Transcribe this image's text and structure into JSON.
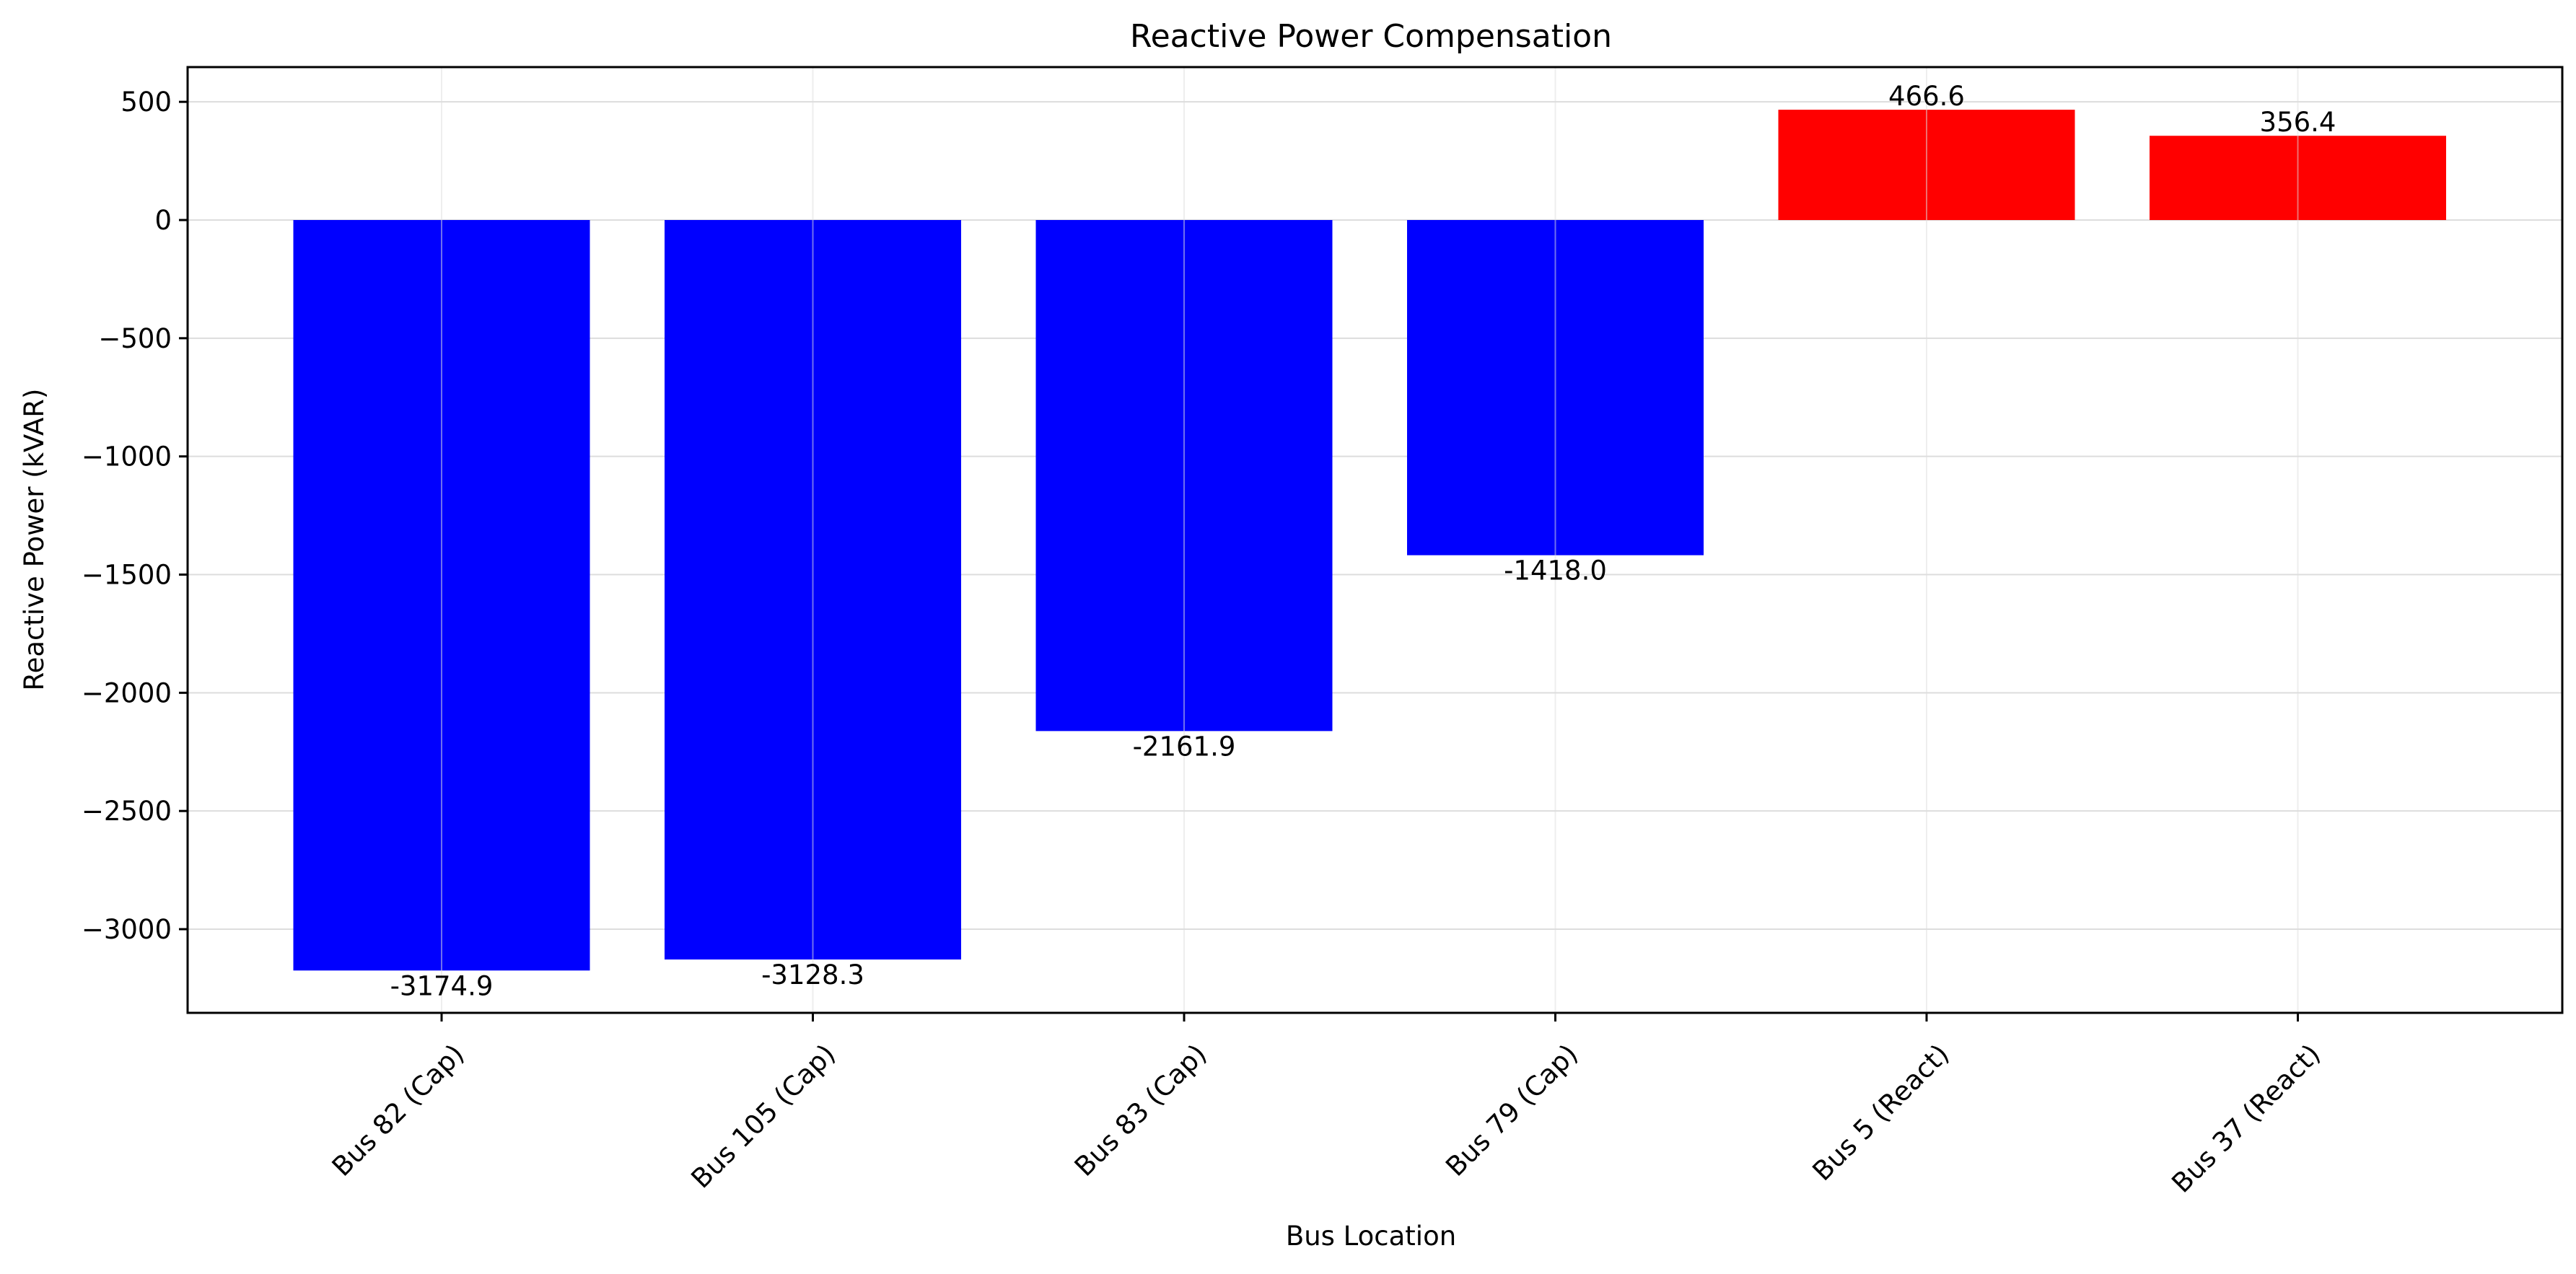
{
  "chart_data": {
    "type": "bar",
    "title": "Reactive Power Compensation",
    "xlabel": "Bus Location",
    "ylabel": "Reactive Power (kVAR)",
    "categories": [
      "Bus 82 (Cap)",
      "Bus 105 (Cap)",
      "Bus 83 (Cap)",
      "Bus 79 (Cap)",
      "Bus 5 (React)",
      "Bus 37 (React)"
    ],
    "values": [
      -3174.9,
      -3128.3,
      -2161.9,
      -1418.0,
      466.6,
      356.4
    ],
    "value_labels": [
      "-3174.9",
      "-3128.3",
      "-2161.9",
      "-1418.0",
      "466.6",
      "356.4"
    ],
    "ylim": [
      -3354,
      647
    ],
    "yticks": [
      500,
      0,
      -500,
      -1000,
      -1500,
      -2000,
      -2500,
      -3000
    ],
    "ytick_labels": [
      "500",
      "0",
      "−500",
      "−1000",
      "−1500",
      "−2000",
      "−2500",
      "−3000"
    ],
    "grid": true,
    "colors": {
      "negative": "#0000ff",
      "positive": "#ff0000",
      "grid": "#dddddd",
      "axis": "#000000"
    }
  }
}
